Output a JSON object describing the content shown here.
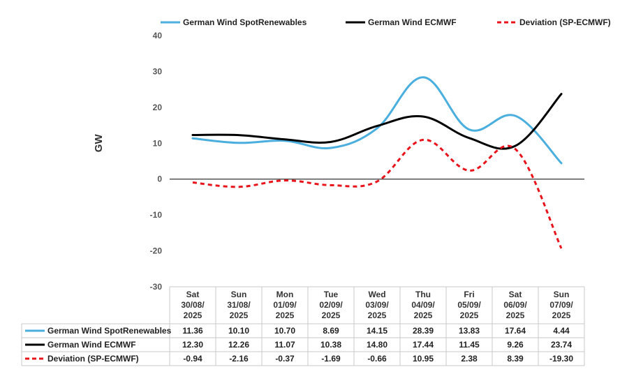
{
  "chart_data": {
    "type": "line",
    "title": "",
    "xlabel": "",
    "ylabel": "GW",
    "ylim": [
      -30,
      40
    ],
    "yticks": [
      40,
      30,
      20,
      10,
      0,
      -10,
      -20,
      -30
    ],
    "legend_position": "top",
    "grid": false,
    "categories": [
      [
        "Sat",
        "30/08/",
        "2025"
      ],
      [
        "Sun",
        "31/08/",
        "2025"
      ],
      [
        "Mon",
        "01/09/",
        "2025"
      ],
      [
        "Tue",
        "02/09/",
        "2025"
      ],
      [
        "Wed",
        "03/09/",
        "2025"
      ],
      [
        "Thu",
        "04/09/",
        "2025"
      ],
      [
        "Fri",
        "05/09/",
        "2025"
      ],
      [
        "Sat",
        "06/09/",
        "2025"
      ],
      [
        "Sun",
        "07/09/",
        "2025"
      ]
    ],
    "series": [
      {
        "name": "German Wind SpotRenewables",
        "color": "#4aaede",
        "dash": "solid",
        "values": [
          11.36,
          10.1,
          10.7,
          8.69,
          14.15,
          28.39,
          13.83,
          17.64,
          4.44
        ],
        "labels": [
          "11.36",
          "10.10",
          "10.70",
          "8.69",
          "14.15",
          "28.39",
          "13.83",
          "17.64",
          "4.44"
        ]
      },
      {
        "name": "German Wind ECMWF",
        "color": "#000000",
        "dash": "solid",
        "values": [
          12.3,
          12.26,
          11.07,
          10.38,
          14.8,
          17.44,
          11.45,
          9.26,
          23.74
        ],
        "labels": [
          "12.30",
          "12.26",
          "11.07",
          "10.38",
          "14.80",
          "17.44",
          "11.45",
          "9.26",
          "23.74"
        ]
      },
      {
        "name": "Deviation (SP-ECMWF)",
        "color": "#e8141b",
        "dash": "dashed",
        "values": [
          -0.94,
          -2.16,
          -0.37,
          -1.69,
          -0.66,
          10.95,
          2.38,
          8.39,
          -19.3
        ],
        "labels": [
          "-0.94",
          "-2.16",
          "-0.37",
          "-1.69",
          "-0.66",
          "10.95",
          "2.38",
          "8.39",
          "-19.30"
        ]
      }
    ]
  }
}
